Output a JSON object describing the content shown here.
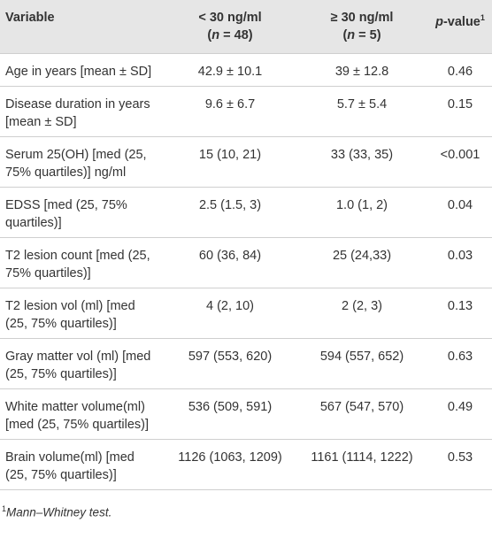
{
  "table": {
    "header": [
      {
        "lines": [
          [
            "Variable"
          ]
        ]
      },
      {
        "lines": [
          [
            "< 30 ng/ml"
          ],
          [
            "(",
            "n",
            " = 48)"
          ]
        ]
      },
      {
        "lines": [
          [
            "≥ 30 ng/ml"
          ],
          [
            "(",
            "n",
            " = 5)"
          ]
        ]
      },
      {
        "lines": [
          [
            "p",
            "-value",
            "1"
          ]
        ]
      }
    ],
    "rows": [
      [
        "Age in years [mean ± SD]",
        "42.9 ± 10.1",
        "39 ± 12.8",
        "0.46"
      ],
      [
        "Disease duration in years [mean ± SD]",
        "9.6 ± 6.7",
        "5.7 ± 5.4",
        "0.15"
      ],
      [
        "Serum 25(OH) [med (25, 75% quartiles)] ng/ml",
        "15 (10, 21)",
        "33 (33, 35)",
        "<0.001"
      ],
      [
        "EDSS [med (25, 75% quartiles)]",
        "2.5 (1.5, 3)",
        "1.0 (1, 2)",
        "0.04"
      ],
      [
        "T2 lesion count [med (25, 75% quartiles)]",
        "60 (36, 84)",
        "25 (24,33)",
        "0.03"
      ],
      [
        "T2 lesion vol (ml) [med (25, 75% quartiles)]",
        "4 (2, 10)",
        "2 (2, 3)",
        "0.13"
      ],
      [
        "Gray matter vol (ml) [med (25, 75% quartiles)]",
        "597 (553, 620)",
        "594 (557, 652)",
        "0.63"
      ],
      [
        "White matter volume(ml) [med (25, 75% quartiles)]",
        "536 (509, 591)",
        "567 (547, 570)",
        "0.49"
      ],
      [
        "Brain volume(ml) [med (25, 75% quartiles)]",
        "1126 (1063, 1209)",
        "1161 (1114, 1222)",
        "0.53"
      ]
    ],
    "footnote": [
      "1",
      "Mann–Whitney test."
    ]
  }
}
